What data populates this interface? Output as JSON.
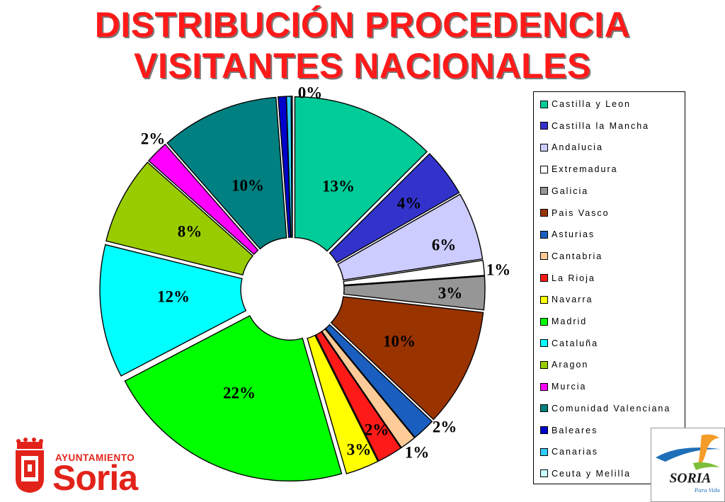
{
  "title": {
    "line1": "DISTRIBUCIÓN PROCEDENCIA",
    "line2": "VISITANTES NACIONALES"
  },
  "chart_data": {
    "type": "pie",
    "title": "DISTRIBUCIÓN PROCEDENCIA VISITANTES NACIONALES",
    "legend_position": "right",
    "labels": [
      "Castilla y Leon",
      "Castilla la Mancha",
      "Andalucia",
      "Extremadura",
      "Galicia",
      "Pais Vasco",
      "Asturias",
      "Cantabria",
      "La Rioja",
      "Navarra",
      "Madrid",
      "Cataluña",
      "Aragon",
      "Murcia",
      "Comunidad Valenciana",
      "Baleares",
      "Canarias",
      "Ceuta y Melilla"
    ],
    "values": [
      12.6,
      4.2,
      5.9,
      1.3,
      2.9,
      10.3,
      2.0,
      1.4,
      2.2,
      2.9,
      21.9,
      11.6,
      7.7,
      2.0,
      10.3,
      0.7,
      0.4,
      0.1
    ],
    "value_labels": [
      "13%",
      "4%",
      "6%",
      "1%",
      "3%",
      "10%",
      "2%",
      "1%",
      "2%",
      "3%",
      "22%",
      "12%",
      "8%",
      "2%",
      "10%",
      "",
      "0%",
      ""
    ],
    "colors": [
      "#00cc99",
      "#3333cc",
      "#ccccff",
      "#ffffff",
      "#969696",
      "#993300",
      "#1a5fbf",
      "#ffcc99",
      "#ff1a1a",
      "#ffff00",
      "#00ff00",
      "#00ffff",
      "#99cc00",
      "#ff00ff",
      "#008080",
      "#0000cc",
      "#33ccff",
      "#ccffff"
    ]
  },
  "logos": {
    "ayuntamiento": {
      "label": "AYUNTAMIENTO",
      "name": "Soria"
    },
    "soria_vida": {
      "name": "SORIA",
      "tagline": "Para Vida"
    }
  }
}
